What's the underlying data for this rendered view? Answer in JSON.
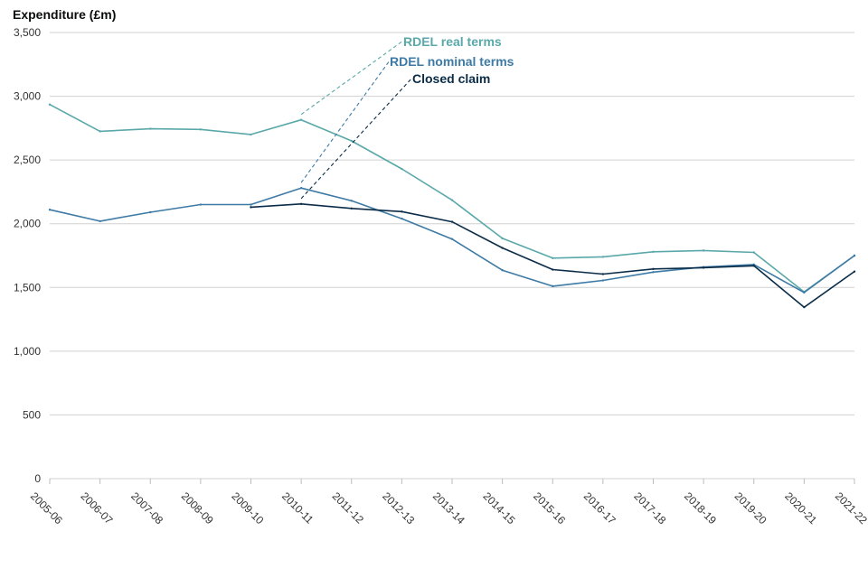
{
  "chart_data": {
    "type": "line",
    "title": "",
    "ylabel": "Expenditure (£m)",
    "xlabel": "",
    "ylim": [
      0,
      3500
    ],
    "yticks": [
      0,
      500,
      1000,
      1500,
      2000,
      2500,
      3000,
      3500
    ],
    "ytick_labels": [
      "0",
      "500",
      "1,000",
      "1,500",
      "2,000",
      "2,500",
      "3,000",
      "3,500"
    ],
    "grid": true,
    "categories": [
      "2005-06",
      "2006-07",
      "2007-08",
      "2008-09",
      "2009-10",
      "2010-11",
      "2011-12",
      "2012-13",
      "2013-14",
      "2014-15",
      "2015-16",
      "2016-17",
      "2017-18",
      "2018-19",
      "2019-20",
      "2020-21",
      "2021-22"
    ],
    "series": [
      {
        "name": "RDEL real terms",
        "color": "#5aa8a9",
        "values": [
          2935,
          2725,
          2745,
          2740,
          2700,
          2815,
          2650,
          2430,
          2185,
          1885,
          1730,
          1740,
          1780,
          1790,
          1775,
          1465,
          1750
        ],
        "label_anchor_category": "2010-11"
      },
      {
        "name": "RDEL nominal terms",
        "color": "#3d7aa5",
        "values": [
          2110,
          2020,
          2090,
          2150,
          2150,
          2280,
          2180,
          2040,
          1880,
          1635,
          1510,
          1555,
          1620,
          1660,
          1680,
          1460,
          1750
        ],
        "label_anchor_category": "2010-11"
      },
      {
        "name": "Closed claim",
        "color": "#0a2c48",
        "values": [
          null,
          null,
          null,
          null,
          2130,
          2155,
          2120,
          2095,
          2015,
          1810,
          1640,
          1605,
          1645,
          1655,
          1670,
          1345,
          1625
        ],
        "label_anchor_category": "2010-11"
      }
    ],
    "legend": "inline-callouts"
  }
}
